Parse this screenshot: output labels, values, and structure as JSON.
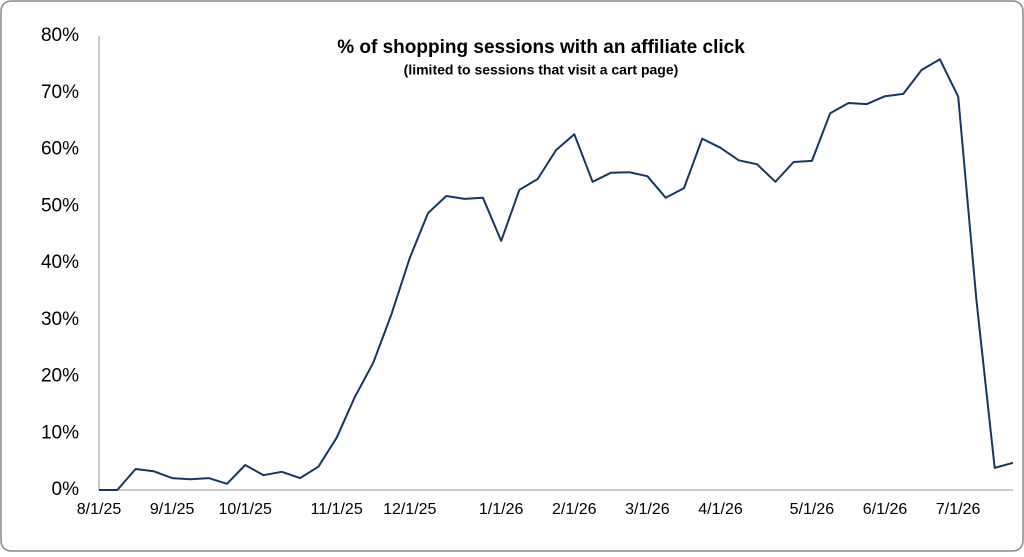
{
  "chart_data": {
    "type": "line",
    "title": "% of shopping sessions with an affiliate click",
    "subtitle": "(limited to sessions that visit a cart page)",
    "categories": [
      "8/1/25",
      null,
      null,
      null,
      "9/1/25",
      null,
      null,
      null,
      "10/1/25",
      null,
      null,
      null,
      null,
      "11/1/25",
      null,
      null,
      null,
      "12/1/25",
      null,
      null,
      null,
      null,
      "1/1/26",
      null,
      null,
      null,
      "2/1/26",
      null,
      null,
      null,
      "3/1/26",
      null,
      null,
      null,
      "4/1/26",
      null,
      null,
      null,
      null,
      "5/1/26",
      null,
      null,
      null,
      "6/1/26",
      null,
      null,
      null,
      "7/1/26",
      null,
      null,
      null
    ],
    "series": [
      {
        "name": "% of sessions",
        "color": "#17375e",
        "values": [
          0,
          0,
          3.7,
          3.3,
          2.1,
          1.9,
          2.1,
          1.1,
          4.4,
          2.6,
          3.2,
          2.1,
          4.1,
          9.2,
          16.4,
          22.4,
          31.0,
          40.9,
          48.8,
          51.8,
          51.3,
          51.5,
          43.9,
          52.9,
          54.8,
          59.9,
          62.7,
          54.3,
          55.9,
          56.0,
          55.3,
          51.5,
          53.2,
          61.9,
          60.3,
          58.1,
          57.4,
          54.3,
          57.8,
          58.0,
          66.4,
          68.2,
          68.0,
          69.4,
          69.8,
          74.0,
          75.9,
          69.3,
          33.5,
          3.9,
          4.8
        ]
      }
    ],
    "ylim": [
      0,
      80
    ],
    "yticks": [
      {
        "value": 0,
        "label": "0%"
      },
      {
        "value": 10,
        "label": "10%"
      },
      {
        "value": 20,
        "label": "20%"
      },
      {
        "value": 30,
        "label": "30%"
      },
      {
        "value": 40,
        "label": "40%"
      },
      {
        "value": 50,
        "label": "50%"
      },
      {
        "value": 60,
        "label": "60%"
      },
      {
        "value": 70,
        "label": "70%"
      },
      {
        "value": 80,
        "label": "80%"
      }
    ],
    "grid": false
  }
}
